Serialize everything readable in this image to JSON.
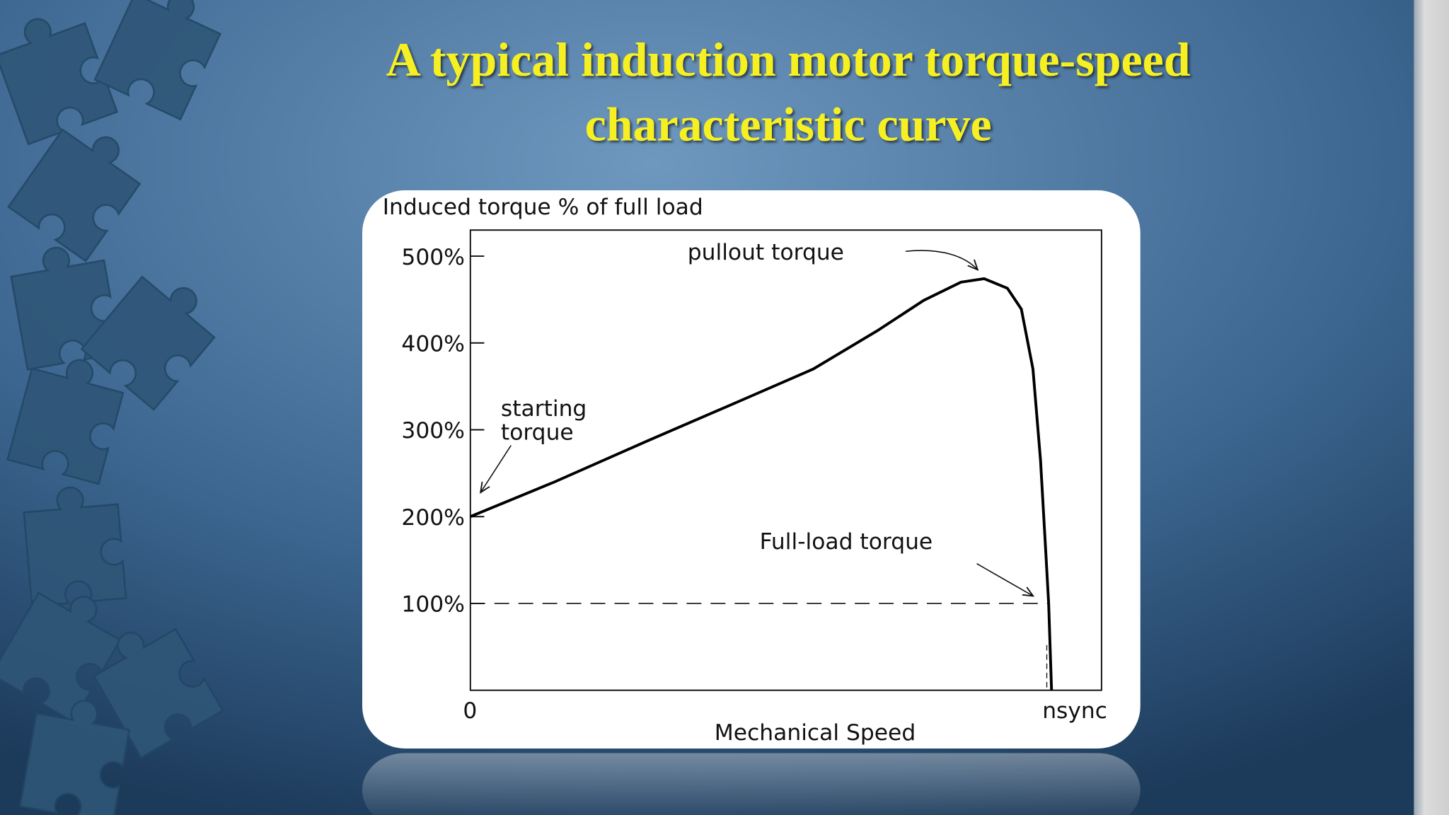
{
  "chart_data": {
    "type": "line",
    "title": [
      "A typical induction motor torque-speed",
      "characteristic curve"
    ],
    "y_label": "Induced torque % of full load",
    "x_label": "Mechanical Speed",
    "x": [
      0,
      0.145,
      0.304,
      0.463,
      0.59,
      0.7,
      0.78,
      0.844,
      0.884,
      0.924,
      0.948,
      0.968,
      0.981,
      0.99,
      0.995,
      1.0
    ],
    "values": [
      200,
      240,
      287,
      333,
      370,
      414,
      449,
      470,
      474,
      463,
      439,
      370,
      265,
      160,
      100,
      0
    ],
    "color": "#000000",
    "xlim": [
      0,
      1.086
    ],
    "xticks": [
      {
        "value": 0,
        "label": "0"
      },
      {
        "value": 1,
        "label": "nsync"
      }
    ],
    "ylim": [
      0,
      530
    ],
    "yticks": [
      {
        "value": 100,
        "label": "100%"
      },
      {
        "value": 200,
        "label": "200%"
      },
      {
        "value": 300,
        "label": "300%"
      },
      {
        "value": 400,
        "label": "400%"
      },
      {
        "value": 500,
        "label": "500%"
      }
    ],
    "reference_line": {
      "y": 100,
      "x_end": 0.995
    },
    "annotations": [
      "pullout torque",
      "starting",
      "torque",
      "Full-load torque"
    ]
  }
}
